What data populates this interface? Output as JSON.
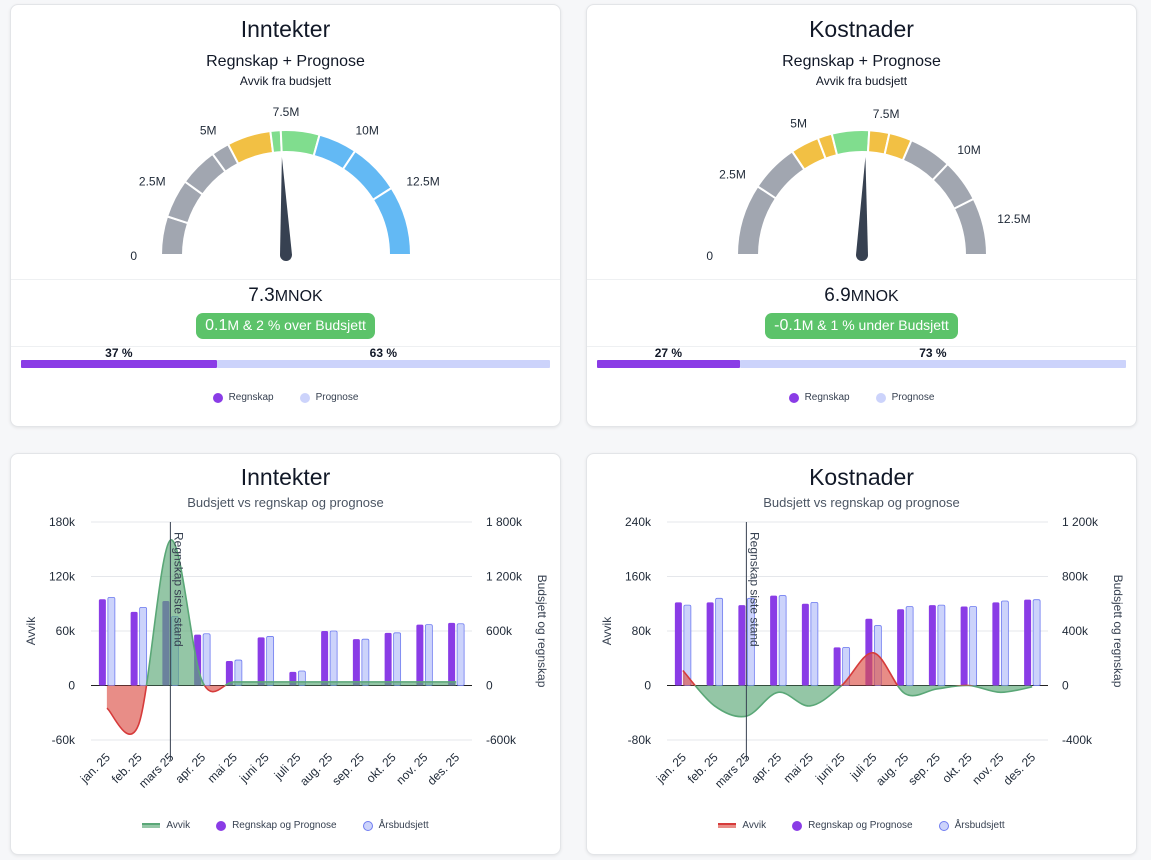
{
  "colors": {
    "regnskap": "#8a3ce6",
    "prognose": "#ccd3fb",
    "aarsbudsjett_border": "#6f7cf0",
    "positive": "#5aa777",
    "positive_fill": "rgba(90,167,119,0.65)",
    "negative": "#d63b3b",
    "negative_fill": "rgba(220,80,70,0.65)",
    "needle": "#374151",
    "badge": "#5cc36a"
  },
  "gauges": [
    {
      "title": "Inntekter",
      "subtitle": "Regnskap + Prognose",
      "subtitle2": "Avvik fra budsjett",
      "value_number": "7.3",
      "value_unit": "MNOK",
      "badge_number": "0.1",
      "badge_text": "M & 2 % over Budsjett",
      "tick_labels": [
        "0",
        "2.5M",
        "5M",
        "7.5M",
        "10M",
        "12.5M"
      ],
      "bar_labels": [
        "37 %",
        "63 %"
      ],
      "legend": [
        "Regnskap",
        "Prognose"
      ],
      "chart_data": {
        "type": "gauge",
        "min": 0,
        "max": 15,
        "needle_value": 7.3,
        "ticks": [
          0,
          2.5,
          5,
          7.5,
          10,
          12.5
        ],
        "bands": [
          {
            "from": 0,
            "to": 1.5,
            "color": "#a1a6b0"
          },
          {
            "from": 1.5,
            "to": 3,
            "color": "#a1a6b0"
          },
          {
            "from": 3,
            "to": 4.5,
            "color": "#a1a6b0"
          },
          {
            "from": 4.5,
            "to": 5.2,
            "color": "#a1a6b0"
          },
          {
            "from": 5.2,
            "to": 6.9,
            "color": "#f2c044"
          },
          {
            "from": 6.9,
            "to": 7.3,
            "color": "#80dd8e"
          },
          {
            "from": 7.3,
            "to": 8.8,
            "color": "#80dd8e"
          },
          {
            "from": 8.8,
            "to": 10.3,
            "color": "#63b9f4"
          },
          {
            "from": 10.3,
            "to": 12.3,
            "color": "#63b9f4"
          },
          {
            "from": 12.3,
            "to": 15,
            "color": "#63b9f4"
          }
        ],
        "split": [
          37,
          63
        ]
      }
    },
    {
      "title": "Kostnader",
      "subtitle": "Regnskap + Prognose",
      "subtitle2": "Avvik fra budsjett",
      "value_number": "6.9",
      "value_unit": "MNOK",
      "badge_number": "-0.1",
      "badge_text": "M & 1 % under Budsjett",
      "tick_labels": [
        "0",
        "2.5M",
        "5M",
        "7.5M",
        "10M",
        "12.5M"
      ],
      "bar_labels": [
        "27 %",
        "73 %"
      ],
      "legend": [
        "Regnskap",
        "Prognose"
      ],
      "chart_data": {
        "type": "gauge",
        "min": 0,
        "max": 13.5,
        "needle_value": 6.9,
        "ticks": [
          0,
          2.5,
          5,
          7.5,
          10,
          12.5
        ],
        "bands": [
          {
            "from": 0,
            "to": 2.5,
            "color": "#a1a6b0"
          },
          {
            "from": 2.5,
            "to": 4.2,
            "color": "#a1a6b0"
          },
          {
            "from": 4.2,
            "to": 5.2,
            "color": "#f2c044"
          },
          {
            "from": 5.2,
            "to": 5.7,
            "color": "#f2c044"
          },
          {
            "from": 5.7,
            "to": 7.0,
            "color": "#80dd8e"
          },
          {
            "from": 7.0,
            "to": 7.7,
            "color": "#f2c044"
          },
          {
            "from": 7.7,
            "to": 8.5,
            "color": "#f2c044"
          },
          {
            "from": 8.5,
            "to": 10.0,
            "color": "#a1a6b0"
          },
          {
            "from": 10.0,
            "to": 11.5,
            "color": "#a1a6b0"
          },
          {
            "from": 11.5,
            "to": 13.5,
            "color": "#a1a6b0"
          }
        ],
        "split": [
          27,
          73
        ]
      }
    }
  ],
  "combos": [
    {
      "title": "Inntekter",
      "subtitle": "Budsjett vs regnskap og prognose",
      "y_left_label": "Avvik",
      "y_right_label": "Budsjett og regnskap",
      "marker_label": "Regnskap siste stand",
      "left_ticks": [
        "180k",
        "120k",
        "60k",
        "0",
        "-60k"
      ],
      "right_ticks": [
        "1 800k",
        "1 200k",
        "600k",
        "0",
        "-600k"
      ],
      "legend": [
        "Avvik",
        "Regnskap og Prognose",
        "Årsbudsjett"
      ],
      "chart_data": {
        "type": "bar",
        "categories": [
          "jan. 25",
          "feb. 25",
          "mars 25",
          "apr. 25",
          "mai 25",
          "juni 25",
          "juli 25",
          "aug. 25",
          "sep. 25",
          "okt. 25",
          "nov. 25",
          "des. 25"
        ],
        "left_range": [
          -60,
          180
        ],
        "right_range": [
          -600,
          1800
        ],
        "marker_index": 2.5,
        "series": [
          {
            "name": "Regnskap og Prognose",
            "axis": "right",
            "values": [
              950,
              810,
              930,
              560,
              270,
              530,
              150,
              600,
              510,
              580,
              670,
              690
            ]
          },
          {
            "name": "Årsbudsjett",
            "axis": "right",
            "values": [
              970,
              860,
              760,
              570,
              280,
              540,
              160,
              600,
              510,
              580,
              670,
              680
            ]
          },
          {
            "name": "Avvik",
            "axis": "left",
            "type": "area",
            "values": [
              -25,
              -43,
              160,
              5,
              4,
              4,
              4,
              4,
              4,
              4,
              4,
              4
            ]
          }
        ]
      }
    },
    {
      "title": "Kostnader",
      "subtitle": "Budsjett vs regnskap og prognose",
      "y_left_label": "Avvik",
      "y_right_label": "Budsjett og regnskap",
      "marker_label": "Regnskap siste stand",
      "left_ticks": [
        "240k",
        "160k",
        "80k",
        "0",
        "-80k"
      ],
      "right_ticks": [
        "1 200k",
        "800k",
        "400k",
        "0",
        "-400k"
      ],
      "legend": [
        "Avvik",
        "Regnskap og Prognose",
        "Årsbudsjett"
      ],
      "chart_data": {
        "type": "bar",
        "categories": [
          "jan. 25",
          "feb. 25",
          "mars 25",
          "apr. 25",
          "mai 25",
          "juni 25",
          "juli 25",
          "aug. 25",
          "sep. 25",
          "okt. 25",
          "nov. 25",
          "des. 25"
        ],
        "left_range": [
          -80,
          240
        ],
        "right_range": [
          -400,
          1200
        ],
        "marker_index": 2.5,
        "series": [
          {
            "name": "Regnskap og Prognose",
            "axis": "right",
            "values": [
              610,
              610,
              590,
              660,
              600,
              280,
              490,
              560,
              590,
              580,
              610,
              630
            ]
          },
          {
            "name": "Årsbudsjett",
            "axis": "right",
            "values": [
              590,
              640,
              640,
              660,
              610,
              280,
              440,
              580,
              590,
              580,
              620,
              630
            ]
          },
          {
            "name": "Avvik",
            "axis": "left",
            "type": "area",
            "values": [
              22,
              -30,
              -45,
              -10,
              -30,
              0,
              48,
              -12,
              -5,
              0,
              -10,
              -2
            ]
          }
        ]
      }
    }
  ]
}
